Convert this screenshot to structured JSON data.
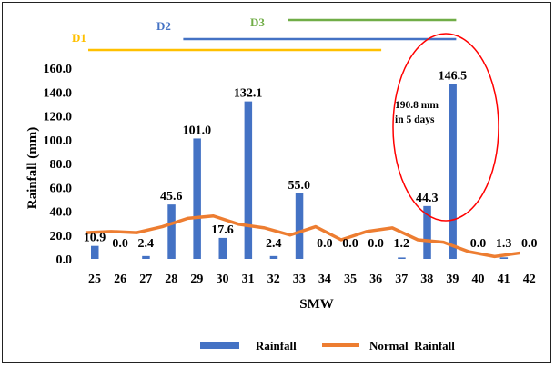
{
  "chart_data": {
    "type": "bar",
    "xlabel": "SMW",
    "ylabel": "Rainfall (mm)",
    "ylim": [
      0,
      160
    ],
    "yticks": [
      "0.0",
      "20.0",
      "40.0",
      "60.0",
      "80.0",
      "100.0",
      "120.0",
      "140.0",
      "160.0"
    ],
    "categories": [
      "25",
      "26",
      "27",
      "28",
      "29",
      "30",
      "31",
      "32",
      "33",
      "34",
      "35",
      "36",
      "37",
      "38",
      "39",
      "40",
      "41",
      "42"
    ],
    "series": [
      {
        "name": "Rainfall",
        "type": "bar",
        "color": "#4472C4",
        "values": [
          10.9,
          0.0,
          2.4,
          45.6,
          101.0,
          17.6,
          132.1,
          2.4,
          55.0,
          0.0,
          0.0,
          0.0,
          1.2,
          44.3,
          146.5,
          0.0,
          1.3,
          0.0
        ],
        "labels": [
          "10.9",
          "0.0",
          "2.4",
          "45.6",
          "101.0",
          "17.6",
          "132.1",
          "2.4",
          "55.0",
          "0.0",
          "0.0",
          "0.0",
          "1.2",
          "44.3",
          "146.5",
          "0.0",
          "1.3",
          "0.0"
        ]
      },
      {
        "name": "Normal  Rainfall",
        "type": "line",
        "color": "#ED7D31",
        "values": [
          22,
          23,
          22,
          27,
          34,
          36,
          29,
          26,
          20,
          27,
          16,
          23,
          26,
          16,
          14,
          6,
          2,
          5
        ]
      }
    ],
    "periods": [
      {
        "label": "D1",
        "from": "25",
        "to": "36",
        "color": "#FFC000"
      },
      {
        "label": "D2",
        "from": "29",
        "to": "39",
        "color": "#4472C4"
      },
      {
        "label": "D3",
        "from": "33",
        "to": "39",
        "color": "#70AD47"
      }
    ],
    "annotation": {
      "text": [
        "190.8 mm",
        "in 5 days"
      ],
      "color": "#FF0000"
    },
    "legend_position": "bottom",
    "grid": false
  }
}
